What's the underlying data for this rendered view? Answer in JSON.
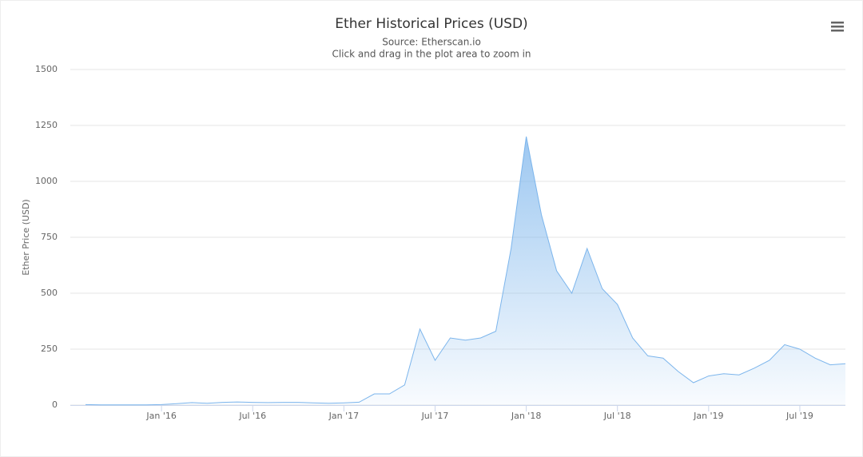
{
  "chart_data": {
    "type": "area",
    "title": "Ether Historical Prices (USD)",
    "subtitle": "Source: Etherscan.io",
    "note": "Click and drag in the plot area to zoom in",
    "y_label": "Ether Price (USD)",
    "color": "#7cb5ec",
    "grid": true,
    "x": [
      "2015-08",
      "2015-09",
      "2015-10",
      "2015-11",
      "2015-12",
      "2016-01",
      "2016-02",
      "2016-03",
      "2016-04",
      "2016-05",
      "2016-06",
      "2016-07",
      "2016-08",
      "2016-09",
      "2016-10",
      "2016-11",
      "2016-12",
      "2017-01",
      "2017-02",
      "2017-03",
      "2017-04",
      "2017-05",
      "2017-06",
      "2017-07",
      "2017-08",
      "2017-09",
      "2017-10",
      "2017-11",
      "2017-12",
      "2018-01",
      "2018-02",
      "2018-03",
      "2018-04",
      "2018-05",
      "2018-06",
      "2018-07",
      "2018-08",
      "2018-09",
      "2018-10",
      "2018-11",
      "2018-12",
      "2019-01",
      "2019-02",
      "2019-03",
      "2019-04",
      "2019-05",
      "2019-06",
      "2019-07",
      "2019-08",
      "2019-09",
      "2019-10"
    ],
    "values": [
      2,
      1,
      1,
      1,
      1,
      2,
      6,
      11,
      8,
      12,
      14,
      12,
      11,
      12,
      12,
      10,
      8,
      10,
      13,
      50,
      50,
      90,
      340,
      200,
      300,
      290,
      300,
      330,
      700,
      1200,
      850,
      600,
      500,
      700,
      520,
      450,
      300,
      220,
      210,
      150,
      100,
      130,
      140,
      135,
      165,
      200,
      270,
      250,
      210,
      180,
      185
    ],
    "xlim": [
      "2015-07",
      "2019-10"
    ],
    "xticks": [
      {
        "value": "2016-01",
        "label": "Jan '16"
      },
      {
        "value": "2016-07",
        "label": "Jul '16"
      },
      {
        "value": "2017-01",
        "label": "Jan '17"
      },
      {
        "value": "2017-07",
        "label": "Jul '17"
      },
      {
        "value": "2018-01",
        "label": "Jan '18"
      },
      {
        "value": "2018-07",
        "label": "Jul '18"
      },
      {
        "value": "2019-01",
        "label": "Jan '19"
      },
      {
        "value": "2019-07",
        "label": "Jul '19"
      }
    ],
    "ylim": [
      0,
      1500
    ],
    "yticks": [
      0,
      250,
      500,
      750,
      1000,
      1250,
      1500
    ]
  }
}
